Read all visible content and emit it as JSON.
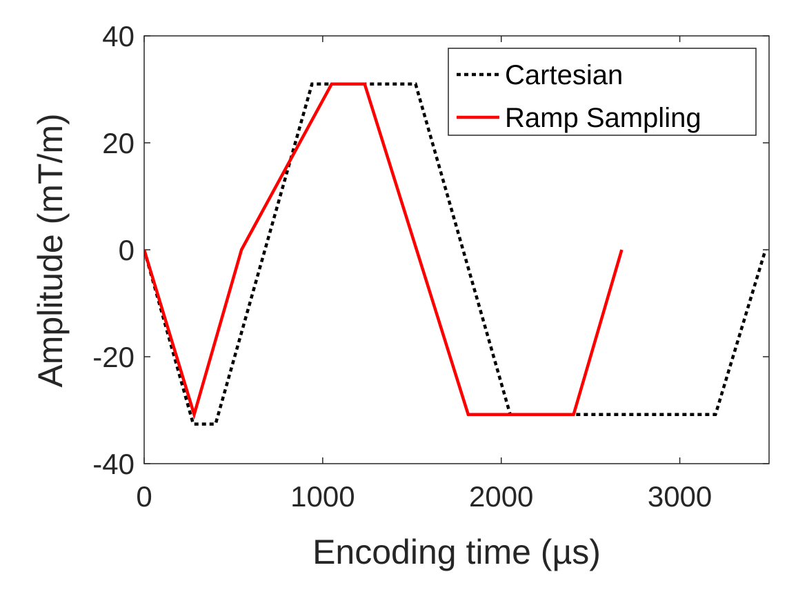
{
  "chart_data": {
    "type": "line",
    "xlabel": "Encoding time (µs)",
    "ylabel": "Amplitude (mT/m)",
    "xlim": [
      0,
      3500
    ],
    "ylim": [
      -40,
      40
    ],
    "xticks": [
      0,
      1000,
      2000,
      3000
    ],
    "yticks": [
      -40,
      -20,
      0,
      20,
      40
    ],
    "xtick_labels": [
      "0",
      "1000",
      "2000",
      "3000"
    ],
    "ytick_labels": [
      "-40",
      "-20",
      "0",
      "20",
      "40"
    ],
    "grid": false,
    "box": true,
    "legend_position": "top-right",
    "series": [
      {
        "name": "Cartesian",
        "color": "#000000",
        "style": "dotted",
        "x": [
          0,
          275,
          400,
          940,
          1520,
          2050,
          3200,
          3480
        ],
        "y": [
          0,
          -32.6,
          -32.6,
          31,
          31,
          -30.8,
          -30.8,
          0
        ]
      },
      {
        "name": "Ramp Sampling",
        "color": "#ff0000",
        "style": "solid",
        "x": [
          0,
          280,
          545,
          1050,
          1235,
          1815,
          2405,
          2675
        ],
        "y": [
          0,
          -30.8,
          0,
          31,
          31,
          -30.8,
          -30.8,
          0
        ]
      }
    ]
  }
}
